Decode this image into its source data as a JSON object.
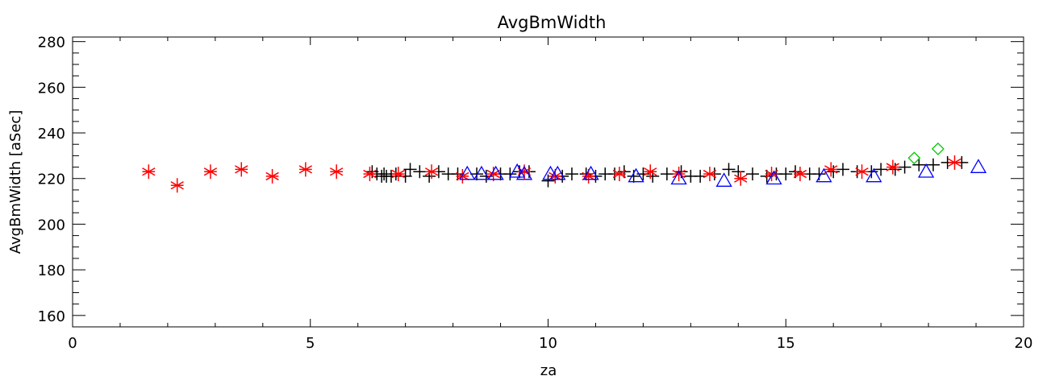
{
  "chart_data": {
    "type": "scatter",
    "title": "AvgBmWidth",
    "xlabel": "za",
    "ylabel": "AvgBmWidth [aSec]",
    "xlim": [
      0,
      20
    ],
    "ylim": [
      155,
      282
    ],
    "xticks": [
      0,
      5,
      10,
      15,
      20
    ],
    "yticks": [
      160,
      180,
      200,
      220,
      240,
      260,
      280
    ],
    "x_minor_step": 1,
    "y_minor_step": 5,
    "grid": false,
    "legend": "none",
    "series": [
      {
        "marker": "plus",
        "color": "#000000",
        "points": [
          [
            6.3,
            223
          ],
          [
            6.4,
            222
          ],
          [
            6.5,
            221
          ],
          [
            6.55,
            222
          ],
          [
            6.6,
            221
          ],
          [
            6.7,
            221
          ],
          [
            6.8,
            222
          ],
          [
            7.0,
            221
          ],
          [
            7.1,
            224
          ],
          [
            7.3,
            223
          ],
          [
            7.5,
            221
          ],
          [
            7.7,
            223
          ],
          [
            7.9,
            222
          ],
          [
            8.1,
            222
          ],
          [
            8.5,
            222
          ],
          [
            8.7,
            221
          ],
          [
            9.0,
            222
          ],
          [
            9.2,
            222
          ],
          [
            9.4,
            223
          ],
          [
            9.6,
            223
          ],
          [
            10.0,
            219
          ],
          [
            10.3,
            221
          ],
          [
            10.5,
            222
          ],
          [
            10.8,
            222
          ],
          [
            11.0,
            221
          ],
          [
            11.2,
            222
          ],
          [
            11.4,
            222
          ],
          [
            11.6,
            223
          ],
          [
            11.8,
            221
          ],
          [
            12.0,
            222
          ],
          [
            12.2,
            221
          ],
          [
            12.5,
            222
          ],
          [
            12.8,
            223
          ],
          [
            13.0,
            221
          ],
          [
            13.2,
            221
          ],
          [
            13.5,
            222
          ],
          [
            13.8,
            224
          ],
          [
            14.0,
            223
          ],
          [
            14.3,
            222
          ],
          [
            14.6,
            221
          ],
          [
            14.8,
            222
          ],
          [
            15.0,
            222
          ],
          [
            15.2,
            223
          ],
          [
            15.5,
            222
          ],
          [
            15.7,
            222
          ],
          [
            16.0,
            223
          ],
          [
            16.2,
            224
          ],
          [
            16.5,
            223
          ],
          [
            16.8,
            223
          ],
          [
            17.0,
            224
          ],
          [
            17.3,
            224
          ],
          [
            17.5,
            225
          ],
          [
            17.8,
            226
          ],
          [
            18.1,
            226
          ],
          [
            18.4,
            227
          ],
          [
            18.7,
            227
          ]
        ]
      },
      {
        "marker": "asterisk",
        "color": "#ff0000",
        "points": [
          [
            1.6,
            223
          ],
          [
            2.2,
            217
          ],
          [
            2.9,
            223
          ],
          [
            3.55,
            224
          ],
          [
            4.2,
            221
          ],
          [
            4.9,
            224
          ],
          [
            5.55,
            223
          ],
          [
            6.25,
            222
          ],
          [
            6.85,
            222
          ],
          [
            7.55,
            223
          ],
          [
            8.2,
            221
          ],
          [
            8.85,
            222
          ],
          [
            9.5,
            223
          ],
          [
            10.15,
            221
          ],
          [
            10.85,
            221
          ],
          [
            11.5,
            222
          ],
          [
            12.15,
            223
          ],
          [
            12.75,
            222
          ],
          [
            13.4,
            222
          ],
          [
            14.05,
            220
          ],
          [
            14.7,
            222
          ],
          [
            15.3,
            222
          ],
          [
            15.95,
            224
          ],
          [
            16.6,
            223
          ],
          [
            17.25,
            225
          ],
          [
            18.55,
            227
          ]
        ]
      },
      {
        "marker": "triangle",
        "color": "#0000ff",
        "points": [
          [
            8.3,
            222
          ],
          [
            8.6,
            222
          ],
          [
            8.9,
            222
          ],
          [
            9.35,
            223
          ],
          [
            9.5,
            222
          ],
          [
            10.05,
            222
          ],
          [
            10.2,
            222
          ],
          [
            10.9,
            222
          ],
          [
            11.85,
            221
          ],
          [
            12.75,
            220
          ],
          [
            13.7,
            219
          ],
          [
            14.75,
            220
          ],
          [
            15.8,
            221
          ],
          [
            16.85,
            221
          ],
          [
            17.95,
            223
          ],
          [
            19.05,
            225
          ]
        ]
      },
      {
        "marker": "diamond",
        "color": "#00c800",
        "points": [
          [
            17.7,
            229
          ],
          [
            18.2,
            233
          ]
        ]
      }
    ]
  }
}
